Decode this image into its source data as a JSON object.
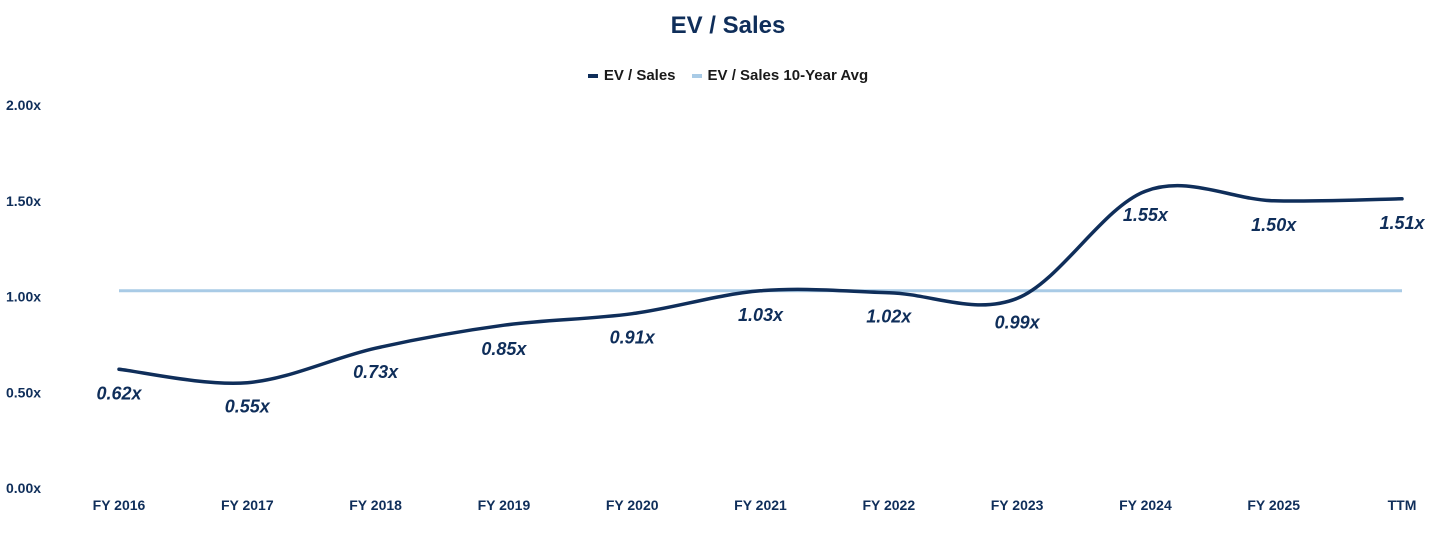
{
  "chart_data": {
    "type": "line",
    "title": "EV / Sales",
    "categories": [
      "FY 2016",
      "FY 2017",
      "FY 2018",
      "FY 2019",
      "FY 2020",
      "FY 2021",
      "FY 2022",
      "FY 2023",
      "FY 2024",
      "FY 2025",
      "TTM"
    ],
    "series": [
      {
        "name": "EV / Sales",
        "color": "#0f2e5a",
        "values": [
          0.62,
          0.55,
          0.73,
          0.85,
          0.91,
          1.03,
          1.02,
          0.99,
          1.55,
          1.5,
          1.51
        ],
        "data_labels": [
          "0.62x",
          "0.55x",
          "0.73x",
          "0.85x",
          "0.91x",
          "1.03x",
          "1.02x",
          "0.99x",
          "1.55x",
          "1.50x",
          "1.51x"
        ]
      },
      {
        "name": "EV / Sales 10-Year Avg",
        "color": "#a9cbe6",
        "values": [
          1.03,
          1.03,
          1.03,
          1.03,
          1.03,
          1.03,
          1.03,
          1.03,
          1.03,
          1.03,
          1.03
        ]
      }
    ],
    "ylim": [
      0,
      2
    ],
    "yticks": [
      "0.00x",
      "0.50x",
      "1.00x",
      "1.50x",
      "2.00x"
    ],
    "ytick_values": [
      0,
      0.5,
      1.0,
      1.5,
      2.0
    ],
    "xlabel": "",
    "ylabel": "",
    "legend_position": "top-center",
    "grid": false
  }
}
